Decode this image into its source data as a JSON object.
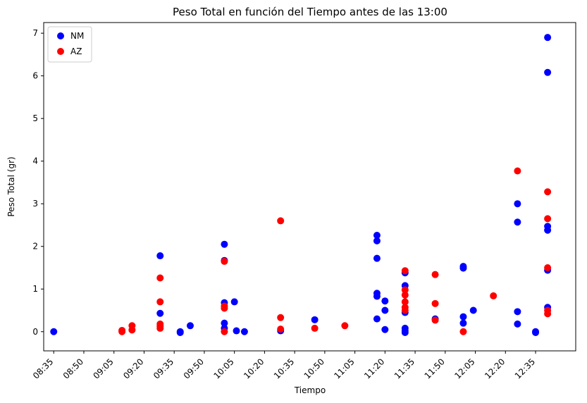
{
  "chart_data": {
    "type": "scatter",
    "title": "Peso Total en función del Tiempo antes de las 13:00",
    "xlabel": "Tiempo",
    "ylabel": "Peso Total (gr)",
    "x_unit": "time (HH:MM)",
    "xlim": [
      "08:30",
      "12:55"
    ],
    "ylim": [
      -0.45,
      7.25
    ],
    "x_ticks": [
      "08:35",
      "08:50",
      "09:05",
      "09:20",
      "09:35",
      "09:50",
      "10:05",
      "10:20",
      "10:35",
      "10:50",
      "11:05",
      "11:20",
      "11:35",
      "11:50",
      "12:05",
      "12:20",
      "12:35"
    ],
    "y_ticks": [
      0,
      1,
      2,
      3,
      4,
      5,
      6,
      7
    ],
    "grid": false,
    "legend": {
      "placement": "top-left"
    },
    "series": [
      {
        "name": "NM",
        "color": "#0000ff",
        "points": [
          [
            "08:35",
            0.0
          ],
          [
            "09:28",
            1.78
          ],
          [
            "09:28",
            0.43
          ],
          [
            "09:38",
            0.0
          ],
          [
            "09:38",
            -0.02
          ],
          [
            "09:43",
            0.14
          ],
          [
            "10:00",
            2.05
          ],
          [
            "10:00",
            1.67
          ],
          [
            "10:00",
            0.68
          ],
          [
            "10:00",
            0.2
          ],
          [
            "10:00",
            0.08
          ],
          [
            "10:05",
            0.7
          ],
          [
            "10:06",
            0.02
          ],
          [
            "10:10",
            0.0
          ],
          [
            "10:28",
            0.02
          ],
          [
            "10:45",
            0.28
          ],
          [
            "11:16",
            2.26
          ],
          [
            "11:16",
            2.13
          ],
          [
            "11:16",
            1.72
          ],
          [
            "11:16",
            0.9
          ],
          [
            "11:16",
            0.83
          ],
          [
            "11:16",
            0.3
          ],
          [
            "11:20",
            0.72
          ],
          [
            "11:20",
            0.5
          ],
          [
            "11:20",
            0.05
          ],
          [
            "11:30",
            1.38
          ],
          [
            "11:30",
            1.08
          ],
          [
            "11:30",
            0.45
          ],
          [
            "11:30",
            0.08
          ],
          [
            "11:30",
            0.02
          ],
          [
            "11:30",
            -0.02
          ],
          [
            "11:45",
            0.3
          ],
          [
            "11:59",
            1.53
          ],
          [
            "11:59",
            1.49
          ],
          [
            "11:59",
            0.35
          ],
          [
            "11:59",
            0.2
          ],
          [
            "12:04",
            0.5
          ],
          [
            "12:26",
            3.0
          ],
          [
            "12:26",
            2.57
          ],
          [
            "12:26",
            0.47
          ],
          [
            "12:26",
            0.18
          ],
          [
            "12:35",
            0.0
          ],
          [
            "12:35",
            -0.02
          ],
          [
            "12:41",
            6.9
          ],
          [
            "12:41",
            6.08
          ],
          [
            "12:41",
            2.47
          ],
          [
            "12:41",
            2.38
          ],
          [
            "12:41",
            1.44
          ],
          [
            "12:41",
            0.57
          ]
        ]
      },
      {
        "name": "AZ",
        "color": "#ff0000",
        "points": [
          [
            "09:09",
            0.03
          ],
          [
            "09:09",
            0.0
          ],
          [
            "09:14",
            0.14
          ],
          [
            "09:14",
            0.04
          ],
          [
            "09:28",
            1.26
          ],
          [
            "09:28",
            0.7
          ],
          [
            "09:28",
            0.18
          ],
          [
            "09:28",
            0.13
          ],
          [
            "09:28",
            0.08
          ],
          [
            "10:00",
            1.65
          ],
          [
            "10:00",
            0.6
          ],
          [
            "10:00",
            0.55
          ],
          [
            "10:00",
            0.0
          ],
          [
            "10:28",
            2.6
          ],
          [
            "10:28",
            0.33
          ],
          [
            "10:28",
            0.06
          ],
          [
            "10:45",
            0.08
          ],
          [
            "11:00",
            0.14
          ],
          [
            "11:30",
            1.43
          ],
          [
            "11:30",
            0.98
          ],
          [
            "11:30",
            0.86
          ],
          [
            "11:30",
            0.7
          ],
          [
            "11:30",
            0.57
          ],
          [
            "11:30",
            0.5
          ],
          [
            "11:45",
            1.34
          ],
          [
            "11:45",
            0.66
          ],
          [
            "11:45",
            0.27
          ],
          [
            "11:59",
            0.0
          ],
          [
            "12:14",
            0.84
          ],
          [
            "12:26",
            3.77
          ],
          [
            "12:41",
            3.28
          ],
          [
            "12:41",
            2.65
          ],
          [
            "12:41",
            1.5
          ],
          [
            "12:41",
            0.5
          ],
          [
            "12:41",
            0.42
          ]
        ]
      }
    ]
  }
}
